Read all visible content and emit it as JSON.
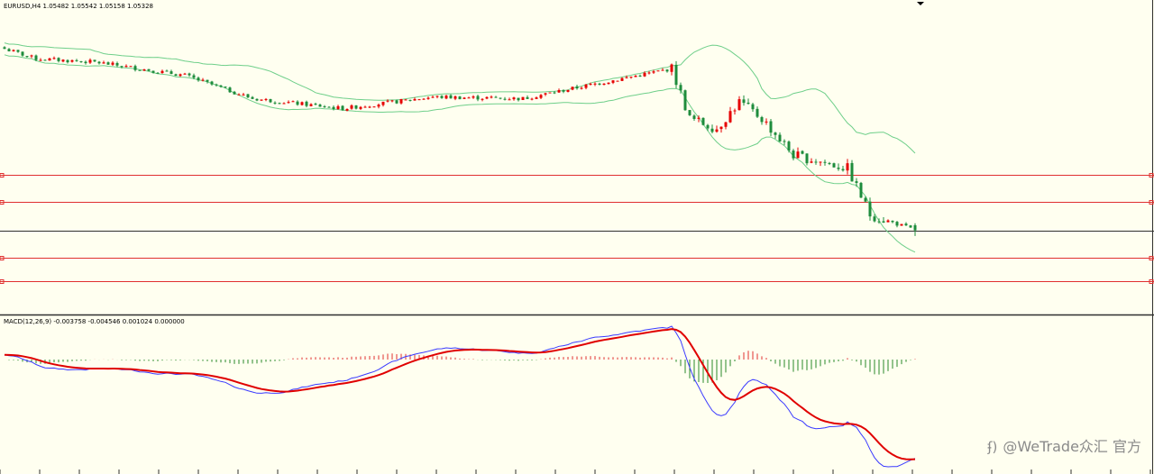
{
  "main_pane": {
    "symbol": "EURUSD,H4",
    "ohlc": "1.05482 1.05542 1.05158 1.05328",
    "label": "EURUSD,H4  1.05482 1.05542 1.05158 1.05328"
  },
  "macd_pane": {
    "label": "MACD(12,26,9) -0.003758 -0.004546 0.001024 0.000000"
  },
  "watermark": {
    "logo": "ʄ)",
    "text": "@WeTrade众汇 官方"
  },
  "colors": {
    "background": "#fffff0",
    "bull_candle": "#e60000",
    "bear_candle": "#1e8c3c",
    "bollinger": "#6fcf8a",
    "level_line": "#e03030",
    "price_line": "#303030",
    "macd_main": "#3a3aff",
    "macd_signal": "#e00000",
    "hist_positive": "#e03030",
    "hist_negative": "#2a8a2a"
  },
  "chart_data": {
    "type": "candlestick",
    "symbol": "EURUSD",
    "timeframe": "H4",
    "last_bar": {
      "open": 1.05482,
      "high": 1.05542,
      "low": 1.05158,
      "close": 1.05328
    },
    "trend_anchors": [
      {
        "bar": 0,
        "price": 1.108
      },
      {
        "bar": 7,
        "price": 1.105
      },
      {
        "bar": 20,
        "price": 1.104
      },
      {
        "bar": 40,
        "price": 1.1
      },
      {
        "bar": 55,
        "price": 1.093
      },
      {
        "bar": 75,
        "price": 1.09
      },
      {
        "bar": 95,
        "price": 1.0935
      },
      {
        "bar": 115,
        "price": 1.093
      },
      {
        "bar": 135,
        "price": 1.0985
      },
      {
        "bar": 148,
        "price": 1.102
      },
      {
        "bar": 152,
        "price": 1.087
      },
      {
        "bar": 158,
        "price": 1.084
      },
      {
        "bar": 163,
        "price": 1.092
      },
      {
        "bar": 168,
        "price": 1.087
      },
      {
        "bar": 175,
        "price": 1.076
      },
      {
        "bar": 187,
        "price": 1.072
      },
      {
        "bar": 192,
        "price": 1.058
      },
      {
        "bar": 202,
        "price": 1.0533
      }
    ],
    "bar_count": 203,
    "horizontal_levels": [
      1.07,
      1.062,
      1.045,
      1.038
    ],
    "current_price": 1.05328,
    "price_range": [
      1.029,
      1.12
    ],
    "indicators": {
      "bollinger_bands": {
        "period": 20
      },
      "macd": {
        "fast": 12,
        "slow": 26,
        "signal": 9,
        "main": -0.003758,
        "signal_value": -0.004546,
        "hist": 0.001024,
        "extra": 0.0
      }
    }
  }
}
